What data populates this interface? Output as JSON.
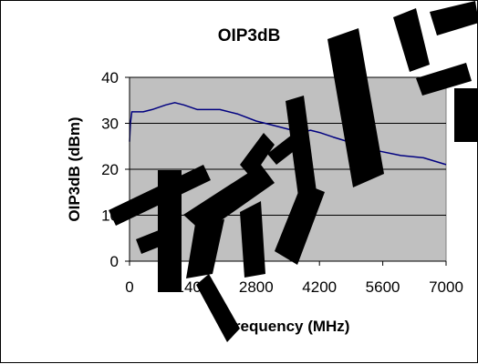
{
  "chart_data": {
    "type": "line",
    "title": "OIP3dB",
    "xlabel": "Frequency (MHz)",
    "ylabel": "OIP3dB (dBm)",
    "xlim": [
      0,
      7000
    ],
    "ylim": [
      0,
      40
    ],
    "x_ticks": [
      "0",
      "1400",
      "2800",
      "4200",
      "5600",
      "7000"
    ],
    "y_ticks": [
      "0",
      "10",
      "20",
      "30",
      "40"
    ],
    "grid": "horizontal",
    "legend": "none",
    "series": [
      {
        "color": "#000080",
        "x": [
          0,
          20,
          50,
          100,
          300,
          500,
          800,
          1000,
          1200,
          1500,
          2000,
          2400,
          2800,
          3200,
          3600,
          3800,
          4000,
          4200,
          4500,
          5000,
          5500,
          6000,
          6500,
          7000
        ],
        "y": [
          26,
          30,
          32.5,
          32.5,
          32.5,
          33,
          34,
          34.5,
          34,
          33,
          33,
          32,
          30.5,
          29.5,
          28.5,
          28,
          28.5,
          28,
          27,
          25.5,
          24,
          23,
          22.5,
          21
        ]
      }
    ]
  },
  "colors": {
    "plot_background": "#c0c0c0",
    "gridline": "#000000",
    "series": "#000080",
    "watermark": "#000000"
  },
  "watermark": {
    "text": "苏州晶",
    "kind": "diagonal brush-stroke watermark"
  }
}
